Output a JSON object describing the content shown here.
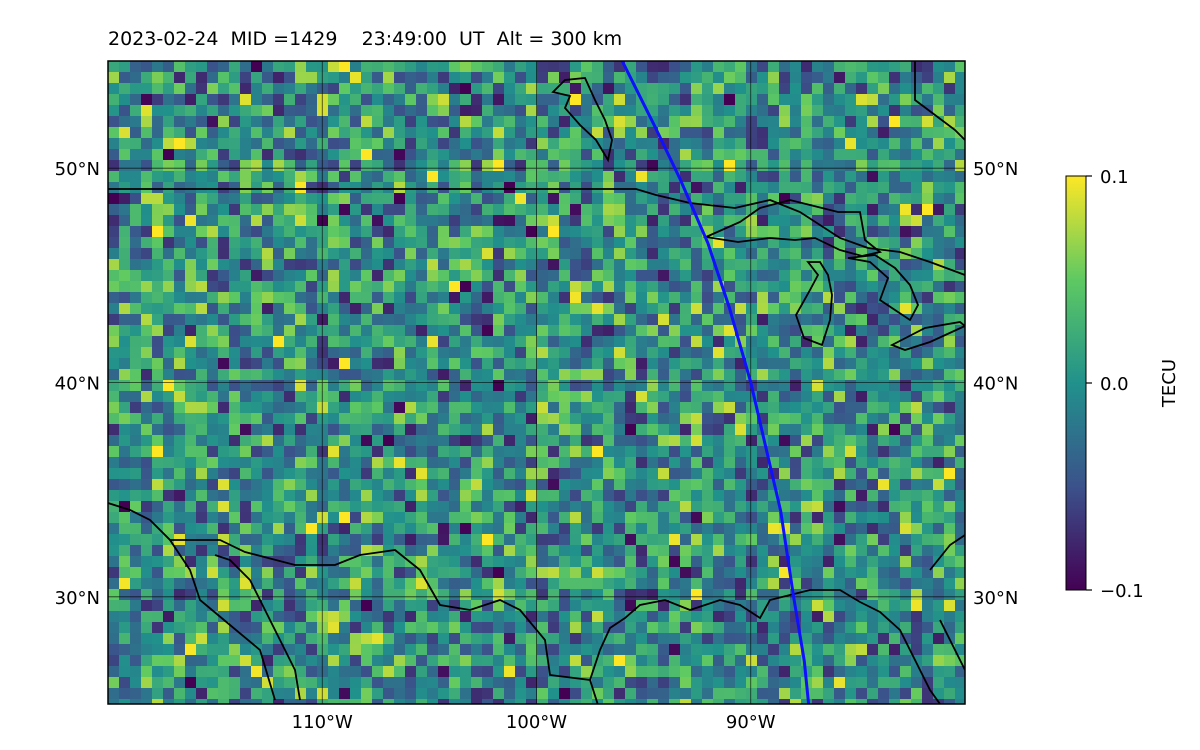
{
  "title": "2023-02-24  MID =1429    23:49:00  UT  Alt = 300 km",
  "map": {
    "lon_range": [
      -120,
      -80
    ],
    "lat_range": [
      25,
      55
    ],
    "lat_ticks": [
      {
        "lat": 50,
        "label": "50°N"
      },
      {
        "lat": 40,
        "label": "40°N"
      },
      {
        "lat": 30,
        "label": "30°N"
      }
    ],
    "lon_ticks": [
      {
        "lon": -110,
        "label": "110°W"
      },
      {
        "lon": -100,
        "label": "100°W"
      },
      {
        "lon": -90,
        "label": "90°W"
      }
    ],
    "gridlines": true,
    "track_color": "#1010ff",
    "track": [
      [
        -96,
        55
      ],
      [
        -94.5,
        52
      ],
      [
        -93.3,
        49.5
      ],
      [
        -92,
        46.5
      ],
      [
        -91,
        43.5
      ],
      [
        -90,
        40
      ],
      [
        -89.3,
        37
      ],
      [
        -88.6,
        34
      ],
      [
        -88,
        30
      ],
      [
        -87.5,
        27
      ],
      [
        -87.3,
        25
      ]
    ],
    "colormap": "viridis"
  },
  "colorbar": {
    "label": "TECU",
    "min": -0.1,
    "max": 0.1,
    "ticks": [
      {
        "value": 0.1,
        "label": "0.1"
      },
      {
        "value": 0.0,
        "label": "0.0"
      },
      {
        "value": -0.1,
        "label": "−0.1"
      }
    ]
  }
}
